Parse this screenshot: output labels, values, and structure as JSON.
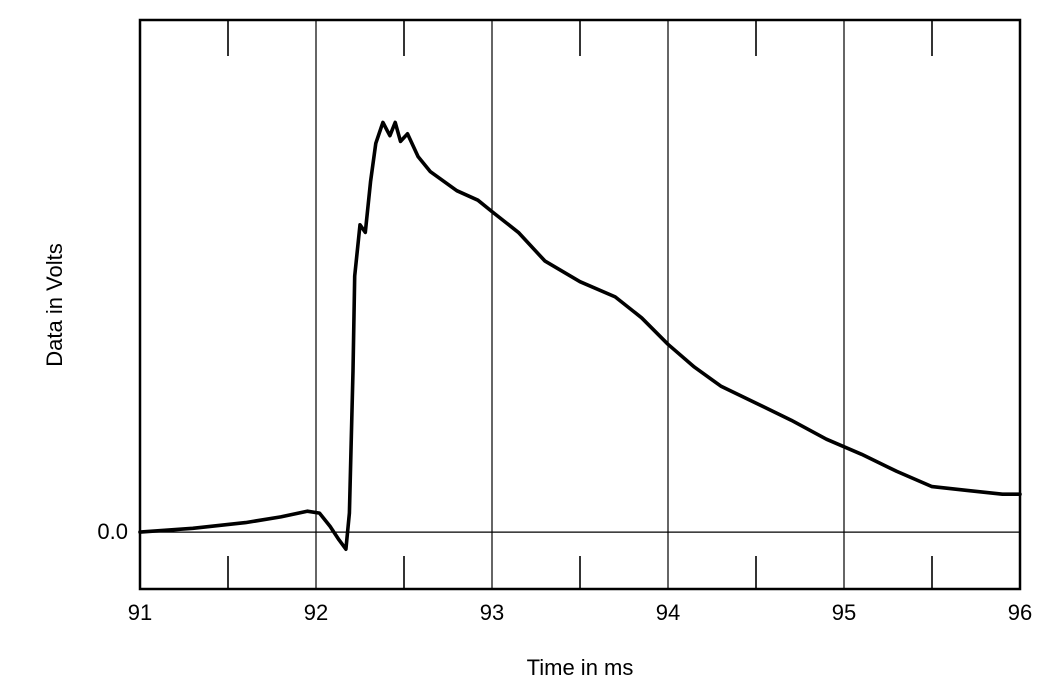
{
  "chart_data": {
    "type": "line",
    "title": "",
    "xlabel": "Time in ms",
    "ylabel": "Data in Volts",
    "xlim": [
      91,
      96
    ],
    "ylim": [
      -0.3,
      2.7
    ],
    "x_ticks": [
      "91",
      "92",
      "93",
      "94",
      "95",
      "96"
    ],
    "x_minor_ticks": [
      91.5,
      92.5,
      93.5,
      94.5,
      95.5
    ],
    "y_tick_labels": [
      {
        "value": 0.0,
        "label": "0.0"
      }
    ],
    "grid": {
      "vertical_lines": [
        92,
        93,
        94,
        95
      ],
      "horizontal_lines": [
        0.0
      ]
    },
    "legend": "none",
    "series": [
      {
        "color": "#000000",
        "points": [
          [
            91.0,
            0.0
          ],
          [
            91.3,
            0.02
          ],
          [
            91.6,
            0.05
          ],
          [
            91.8,
            0.08
          ],
          [
            91.95,
            0.11
          ],
          [
            92.02,
            0.1
          ],
          [
            92.08,
            0.03
          ],
          [
            92.13,
            -0.04
          ],
          [
            92.17,
            -0.09
          ],
          [
            92.19,
            0.1
          ],
          [
            92.21,
            0.85
          ],
          [
            92.22,
            1.35
          ],
          [
            92.25,
            1.62
          ],
          [
            92.28,
            1.58
          ],
          [
            92.31,
            1.85
          ],
          [
            92.34,
            2.05
          ],
          [
            92.38,
            2.16
          ],
          [
            92.42,
            2.09
          ],
          [
            92.45,
            2.16
          ],
          [
            92.48,
            2.06
          ],
          [
            92.52,
            2.1
          ],
          [
            92.58,
            1.98
          ],
          [
            92.65,
            1.9
          ],
          [
            92.8,
            1.8
          ],
          [
            92.92,
            1.75
          ],
          [
            93.0,
            1.69
          ],
          [
            93.15,
            1.58
          ],
          [
            93.3,
            1.43
          ],
          [
            93.5,
            1.32
          ],
          [
            93.7,
            1.24
          ],
          [
            93.85,
            1.13
          ],
          [
            94.0,
            0.99
          ],
          [
            94.15,
            0.87
          ],
          [
            94.3,
            0.77
          ],
          [
            94.5,
            0.68
          ],
          [
            94.7,
            0.59
          ],
          [
            94.9,
            0.49
          ],
          [
            95.1,
            0.41
          ],
          [
            95.3,
            0.32
          ],
          [
            95.5,
            0.24
          ],
          [
            95.7,
            0.22
          ],
          [
            95.9,
            0.2
          ],
          [
            96.0,
            0.2
          ]
        ]
      }
    ]
  }
}
